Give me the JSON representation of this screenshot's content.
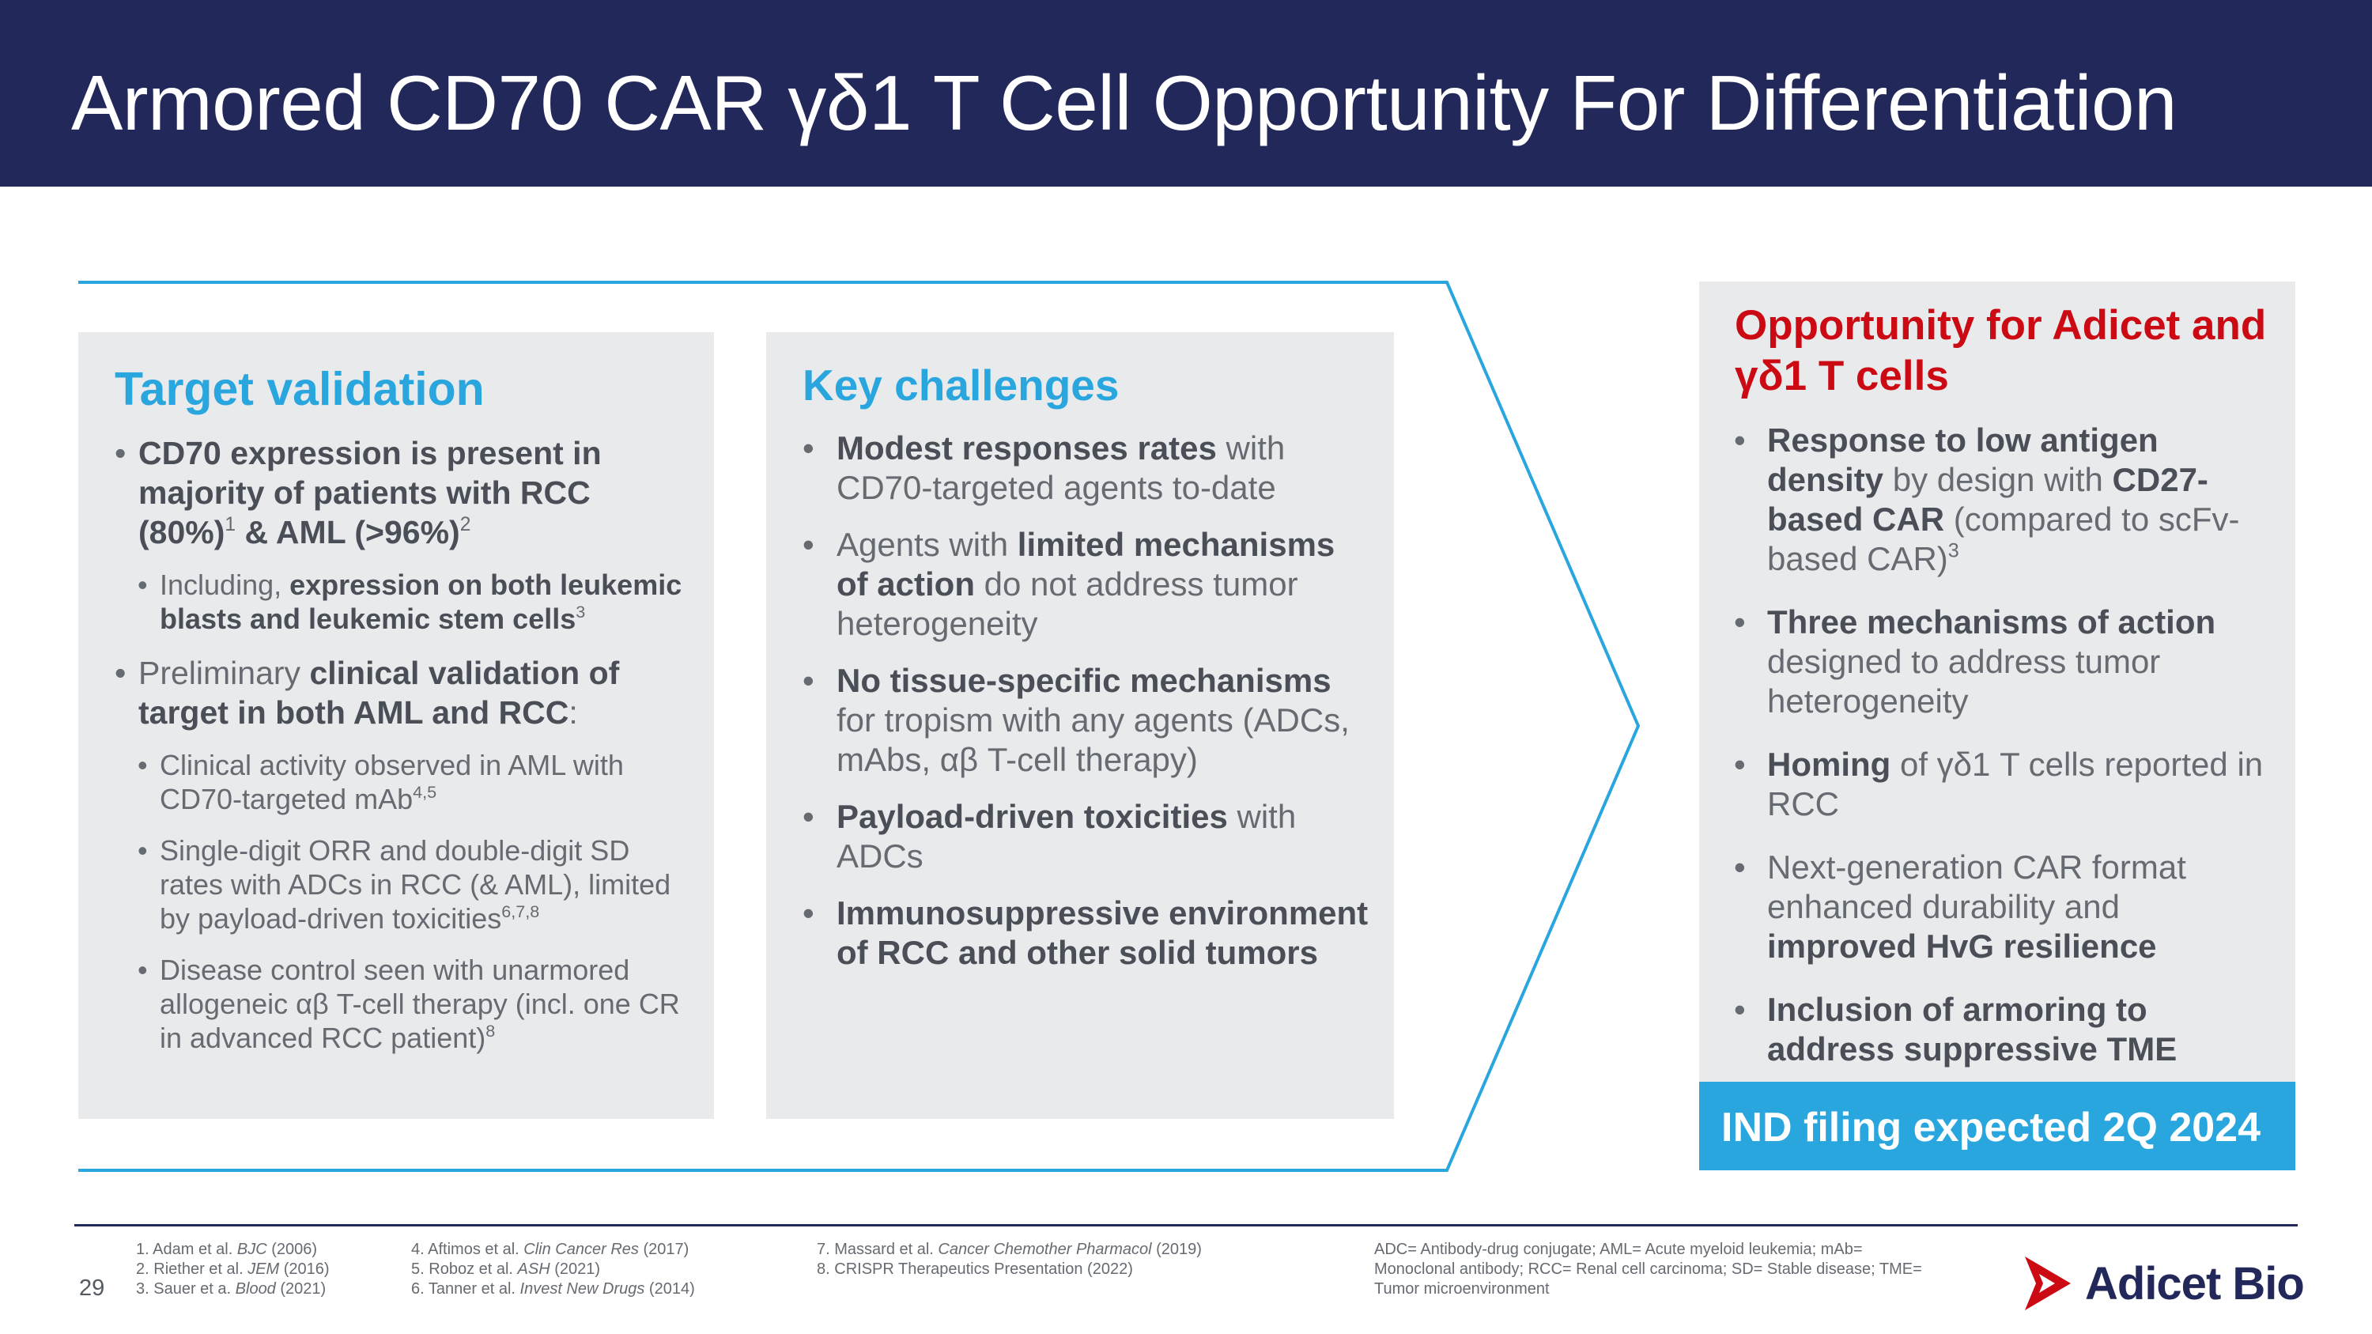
{
  "title": "Armored CD70 CAR γδ1 T Cell Opportunity For Differentiation",
  "target": {
    "heading": "Target validation",
    "b1_bold": "CD70 expression is present in majority of patients with RCC (80%)",
    "b1_sup1": "1",
    "b1_mid": " & AML (>96%)",
    "b1_sup2": "2",
    "s1_pre": "Including, ",
    "s1_bold": "expression on both leukemic blasts and leukemic stem cells",
    "s1_sup": "3",
    "b2_pre": "Preliminary ",
    "b2_bold": "clinical validation of target in both AML and RCC",
    "b2_post": ":",
    "s2_text": "Clinical activity observed in AML with CD70-targeted mAb",
    "s2_sup": "4,5",
    "s3_text": "Single-digit ORR and double-digit SD rates with ADCs in RCC (& AML), limited by payload-driven toxicities",
    "s3_sup": "6,7,8",
    "s4_text": "Disease control seen with unarmored allogeneic αβ T-cell therapy (incl. one CR in advanced RCC patient)",
    "s4_sup": "8"
  },
  "challenges": {
    "heading": "Key challenges",
    "c1_bold": "Modest responses rates",
    "c1_rest": " with CD70-targeted agents to-date",
    "c2_pre": "Agents with ",
    "c2_bold": "limited mechanisms of action",
    "c2_rest": " do not address tumor heterogeneity",
    "c3_bold": "No tissue-specific mechanisms",
    "c3_rest": " for tropism with any agents (ADCs, mAbs, αβ T-cell therapy)",
    "c4_bold": "Payload-driven toxicities",
    "c4_rest": " with ADCs",
    "c5_bold": "Immunosuppressive environment of RCC and other solid tumors"
  },
  "opportunity": {
    "heading": "Opportunity for Adicet and γδ1 T cells",
    "o1_bold1": "Response to low antigen density",
    "o1_mid": " by design with ",
    "o1_bold2": "CD27-based CAR",
    "o1_rest": " (compared to scFv-based CAR)",
    "o1_sup": "3",
    "o2_bold": "Three mechanisms of action",
    "o2_rest": " designed to address tumor heterogeneity",
    "o3_bold": "Homing",
    "o3_rest": " of γδ1 T cells reported in RCC",
    "o4_pre": "Next-generation CAR format enhanced durability and ",
    "o4_bold": "improved HvG resilience",
    "o5_bold": "Inclusion of armoring to address suppressive TME",
    "banner": "IND filing expected 2Q 2024"
  },
  "footer": {
    "page_number": "29",
    "references": [
      {
        "num": "1.",
        "author": "Adam et al. ",
        "journal": "BJC",
        "year": " (2006)"
      },
      {
        "num": "2.",
        "author": "Riether et al. ",
        "journal": "JEM",
        "year": " (2016)"
      },
      {
        "num": "3.",
        "author": "Sauer et a. ",
        "journal": "Blood",
        "year": " (2021)"
      },
      {
        "num": "4.",
        "author": "Aftimos et al. ",
        "journal": "Clin Cancer Res",
        "year": " (2017)"
      },
      {
        "num": "5.",
        "author": "Roboz et al. ",
        "journal": "ASH",
        "year": " (2021)"
      },
      {
        "num": "6.",
        "author": "Tanner et al. ",
        "journal": "Invest New Drugs",
        "year": " (2014)"
      },
      {
        "num": "7.",
        "author": "Massard et al. ",
        "journal": "Cancer Chemother Pharmacol",
        "year": " (2019)"
      },
      {
        "num": "8.",
        "author": "CRISPR Therapeutics Presentation",
        "journal": "",
        "year": " (2022)"
      }
    ],
    "abbreviations": "ADC= Antibody-drug conjugate; AML= Acute myeloid leukemia; mAb= Monoclonal antibody; RCC= Renal cell carcinoma; SD= Stable disease; TME= Tumor microenvironment"
  },
  "logo": {
    "text": "Adicet Bio",
    "mark_color": "#cc0a14",
    "brand_color": "#23285a"
  },
  "colors": {
    "header_bg": "#23285a",
    "accent_blue": "#2aa6df",
    "accent_red": "#cc0a14",
    "panel_bg": "#e9eaec"
  }
}
